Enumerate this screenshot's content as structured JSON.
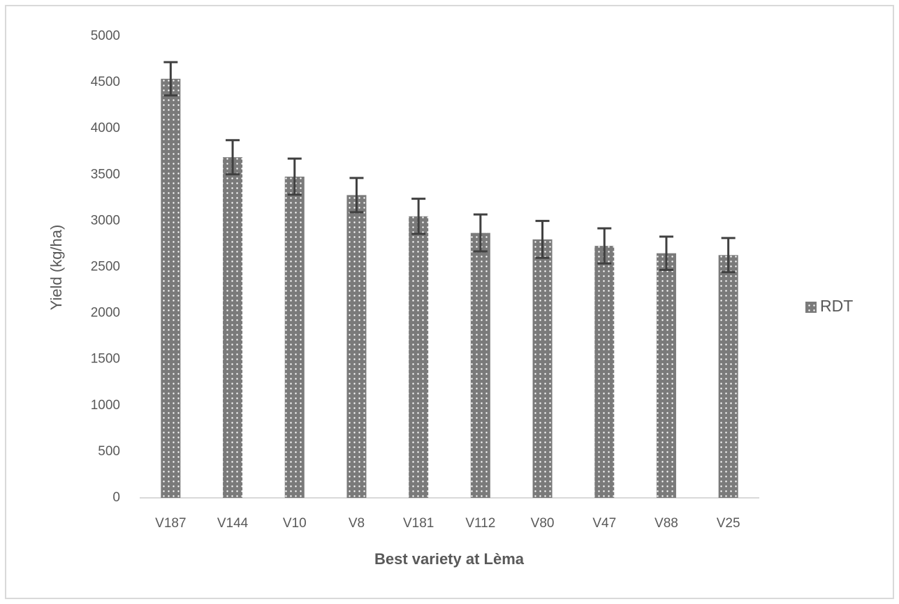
{
  "chart_data": {
    "type": "bar",
    "x_label": "Best variety at Lèma",
    "y_label": "Yield (kg/ha)",
    "categories": [
      "V187",
      "V144",
      "V10",
      "V8",
      "V181",
      "V112",
      "V80",
      "V47",
      "V88",
      "V25"
    ],
    "series": [
      {
        "name": "RDT",
        "color": "#7a7a7a",
        "values": [
          4540,
          3690,
          3480,
          3280,
          3050,
          2870,
          2800,
          2730,
          2650,
          2630
        ],
        "errors": [
          180,
          185,
          195,
          185,
          190,
          200,
          200,
          190,
          180,
          185
        ]
      }
    ],
    "ylim": [
      0,
      5000
    ],
    "yticks": [
      0,
      500,
      1000,
      1500,
      2000,
      2500,
      3000,
      3500,
      4000,
      4500,
      5000
    ],
    "grid": false,
    "legend": "right"
  }
}
